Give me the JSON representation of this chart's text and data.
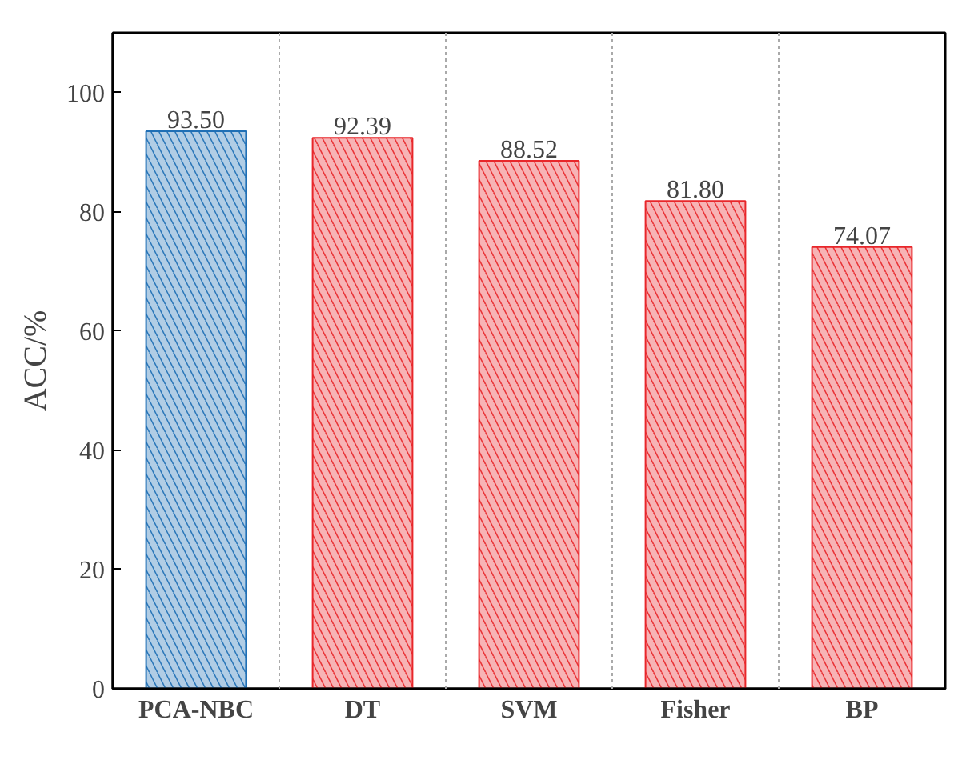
{
  "chart_data": {
    "type": "bar",
    "ylabel": "ACC/%",
    "categories": [
      "PCA-NBC",
      "DT",
      "SVM",
      "Fisher",
      "BP"
    ],
    "values": [
      93.5,
      92.39,
      88.52,
      81.8,
      74.07
    ],
    "colors": [
      "#1f6fb5",
      "#e8262a",
      "#e8262a",
      "#e8262a",
      "#e8262a"
    ],
    "value_labels": [
      "93.50",
      "92.39",
      "88.52",
      "81.80",
      "74.07"
    ],
    "ylim": [
      0,
      110
    ],
    "yticks": [
      0,
      20,
      40,
      60,
      80,
      100
    ],
    "grid": "x"
  }
}
